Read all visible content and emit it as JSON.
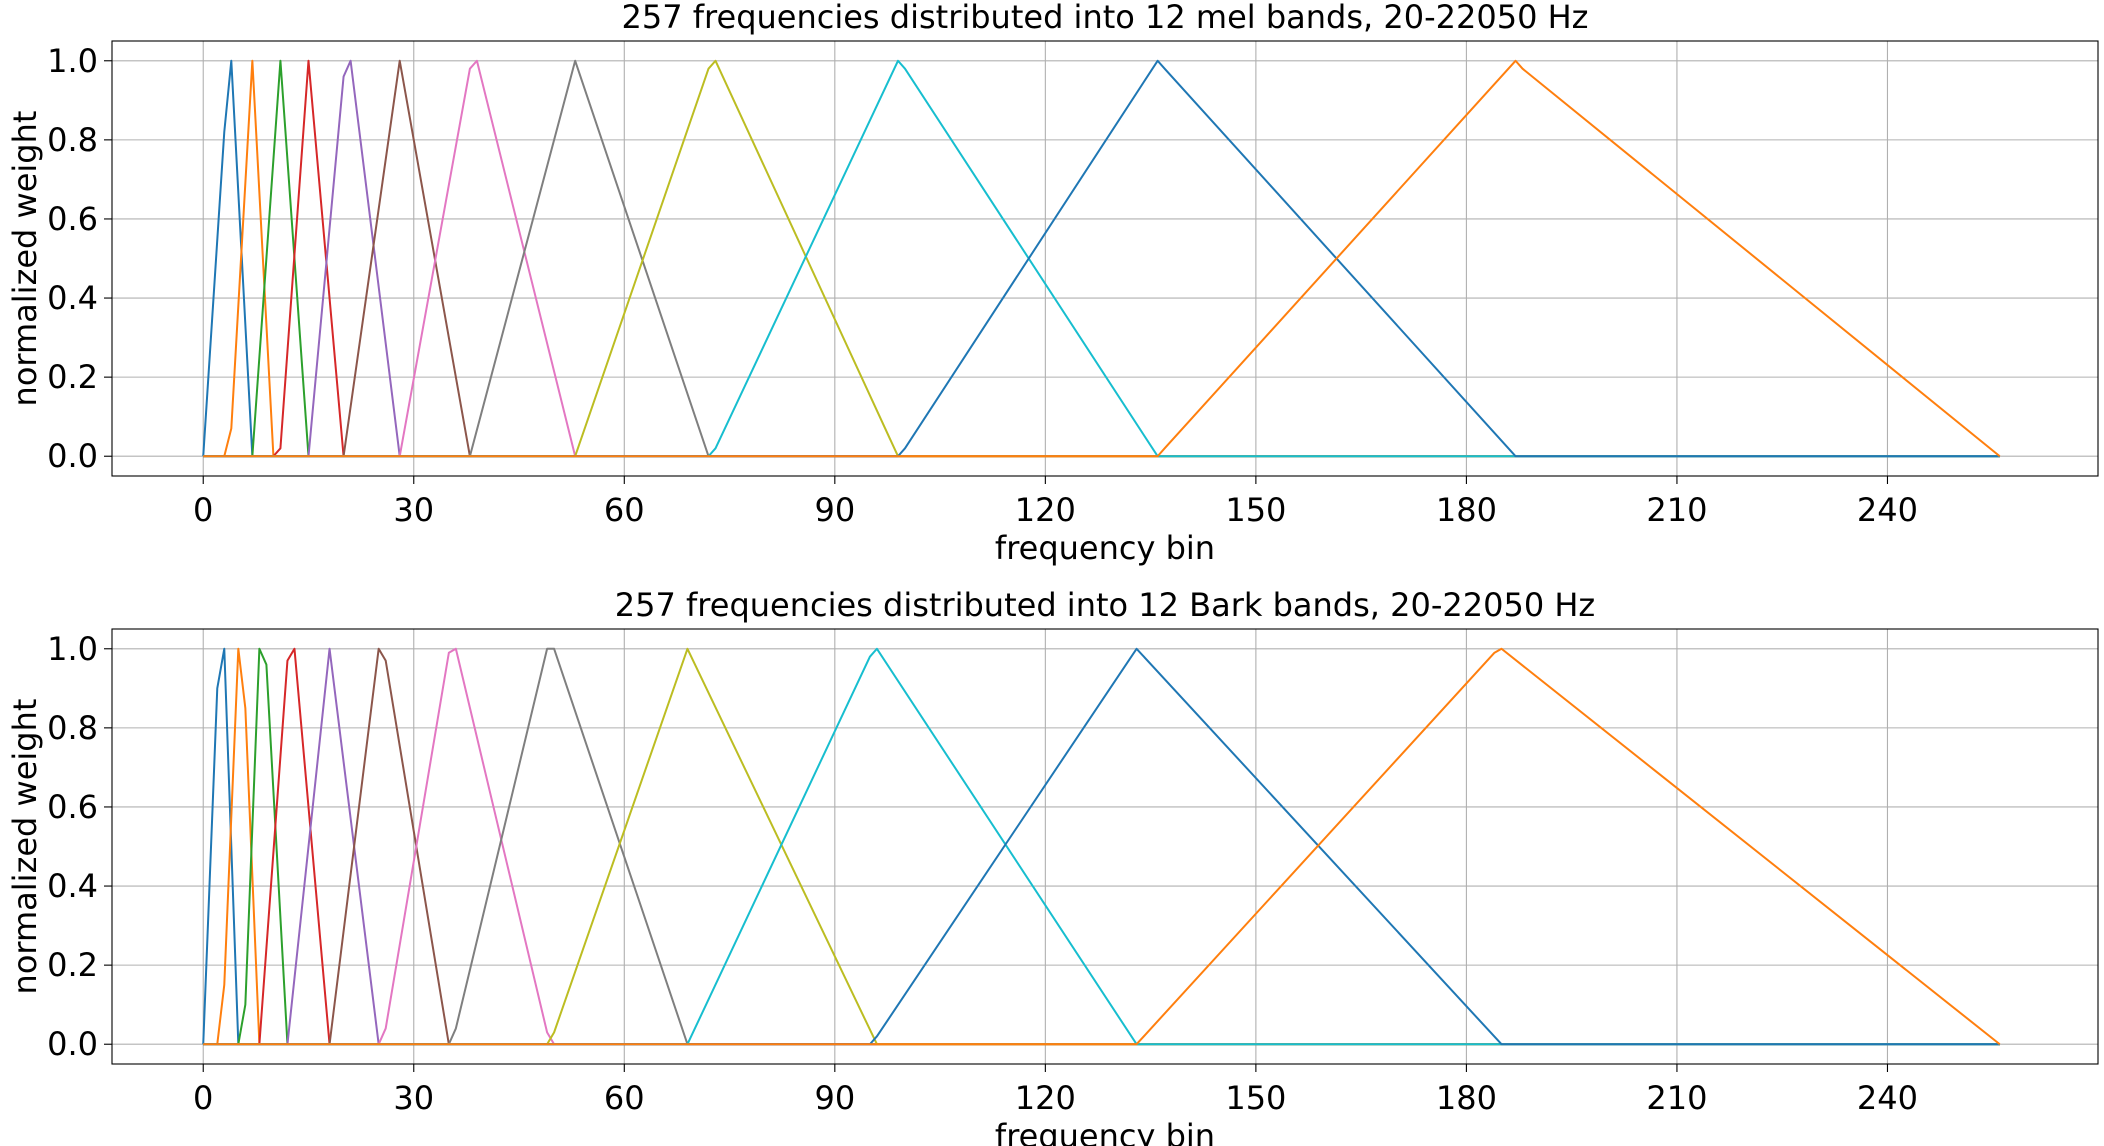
{
  "chart_data": [
    {
      "type": "line",
      "title": "257 frequencies distributed into 12 mel bands, 20-22050 Hz",
      "xlabel": "frequency bin",
      "ylabel": "normalized weight",
      "xlim": [
        -13,
        270
      ],
      "ylim": [
        -0.05,
        1.05
      ],
      "xticks": [
        0,
        30,
        60,
        90,
        120,
        150,
        180,
        210,
        240
      ],
      "xtick_labels": [
        "0",
        "30",
        "60",
        "90",
        "120",
        "150",
        "180",
        "210",
        "240"
      ],
      "yticks": [
        0.0,
        0.2,
        0.4,
        0.6,
        0.8,
        1.0
      ],
      "ytick_labels": [
        "0.0",
        "0.2",
        "0.4",
        "0.6",
        "0.8",
        "1.0"
      ],
      "grid": true,
      "series": [
        {
          "color": "#1f77b4",
          "x": [
            0,
            3,
            4,
            7,
            256
          ],
          "y": [
            0,
            0.82,
            1.0,
            0,
            0
          ]
        },
        {
          "color": "#ff7f0e",
          "x": [
            0,
            3,
            4,
            7,
            10,
            256
          ],
          "y": [
            0,
            0,
            0.07,
            1.0,
            0,
            0
          ]
        },
        {
          "color": "#2ca02c",
          "x": [
            0,
            7,
            11,
            15,
            256
          ],
          "y": [
            0,
            0,
            1.0,
            0,
            0
          ]
        },
        {
          "color": "#d62728",
          "x": [
            0,
            10,
            11,
            15,
            20,
            256
          ],
          "y": [
            0,
            0,
            0.02,
            1.0,
            0,
            0
          ]
        },
        {
          "color": "#9467bd",
          "x": [
            0,
            15,
            20,
            21,
            28,
            256
          ],
          "y": [
            0,
            0,
            0.96,
            1.0,
            0,
            0
          ]
        },
        {
          "color": "#8c564b",
          "x": [
            0,
            20,
            28,
            38,
            256
          ],
          "y": [
            0,
            0,
            1.0,
            0,
            0
          ]
        },
        {
          "color": "#e377c2",
          "x": [
            0,
            28,
            38,
            39,
            53,
            256
          ],
          "y": [
            0,
            0,
            0.98,
            1.0,
            0,
            0
          ]
        },
        {
          "color": "#7f7f7f",
          "x": [
            0,
            38,
            53,
            72,
            256
          ],
          "y": [
            0,
            0,
            1.0,
            0,
            0
          ]
        },
        {
          "color": "#bcbd22",
          "x": [
            0,
            53,
            72,
            73,
            99,
            256
          ],
          "y": [
            0,
            0,
            0.98,
            1.0,
            0,
            0
          ]
        },
        {
          "color": "#17becf",
          "x": [
            0,
            72,
            73,
            99,
            100,
            136,
            256
          ],
          "y": [
            0,
            0,
            0.02,
            1.0,
            0.98,
            0,
            0
          ]
        },
        {
          "color": "#1f77b4",
          "x": [
            0,
            99,
            100,
            136,
            137,
            187,
            256
          ],
          "y": [
            0,
            0,
            0.02,
            1.0,
            0.98,
            0,
            0
          ]
        },
        {
          "color": "#ff7f0e",
          "x": [
            0,
            136,
            137,
            187,
            188,
            256
          ],
          "y": [
            0,
            0,
            0.02,
            1.0,
            0.98,
            0
          ]
        }
      ]
    },
    {
      "type": "line",
      "title": "257 frequencies distributed into 12 Bark bands, 20-22050 Hz",
      "xlabel": "frequency bin",
      "ylabel": "normalized weight",
      "xlim": [
        -13,
        270
      ],
      "ylim": [
        -0.05,
        1.05
      ],
      "xticks": [
        0,
        30,
        60,
        90,
        120,
        150,
        180,
        210,
        240
      ],
      "xtick_labels": [
        "0",
        "30",
        "60",
        "90",
        "120",
        "150",
        "180",
        "210",
        "240"
      ],
      "yticks": [
        0.0,
        0.2,
        0.4,
        0.6,
        0.8,
        1.0
      ],
      "ytick_labels": [
        "0.0",
        "0.2",
        "0.4",
        "0.6",
        "0.8",
        "1.0"
      ],
      "grid": true,
      "series": [
        {
          "color": "#1f77b4",
          "x": [
            0,
            2,
            3,
            5,
            256
          ],
          "y": [
            0,
            0.9,
            1.0,
            0,
            0
          ]
        },
        {
          "color": "#ff7f0e",
          "x": [
            0,
            2,
            3,
            5,
            6,
            8,
            256
          ],
          "y": [
            0,
            0,
            0.15,
            1.0,
            0.85,
            0,
            0
          ]
        },
        {
          "color": "#2ca02c",
          "x": [
            0,
            5,
            6,
            8,
            9,
            12,
            256
          ],
          "y": [
            0,
            0,
            0.1,
            1.0,
            0.96,
            0,
            0
          ]
        },
        {
          "color": "#d62728",
          "x": [
            0,
            8,
            12,
            13,
            18,
            256
          ],
          "y": [
            0,
            0,
            0.97,
            1.0,
            0,
            0
          ]
        },
        {
          "color": "#9467bd",
          "x": [
            0,
            12,
            18,
            25,
            256
          ],
          "y": [
            0,
            0,
            1.0,
            0,
            0
          ]
        },
        {
          "color": "#8c564b",
          "x": [
            0,
            18,
            25,
            26,
            35,
            256
          ],
          "y": [
            0,
            0,
            1.0,
            0.97,
            0,
            0
          ]
        },
        {
          "color": "#e377c2",
          "x": [
            0,
            25,
            26,
            35,
            36,
            49,
            50,
            256
          ],
          "y": [
            0,
            0,
            0.04,
            0.99,
            1.0,
            0.03,
            0,
            0
          ]
        },
        {
          "color": "#7f7f7f",
          "x": [
            0,
            35,
            36,
            49,
            50,
            69,
            256
          ],
          "y": [
            0,
            0,
            0.04,
            1.0,
            1.0,
            0,
            0
          ]
        },
        {
          "color": "#bcbd22",
          "x": [
            0,
            49,
            50,
            69,
            96,
            256
          ],
          "y": [
            0,
            0,
            0.03,
            1.0,
            0,
            0
          ]
        },
        {
          "color": "#17becf",
          "x": [
            0,
            69,
            95,
            96,
            133,
            256
          ],
          "y": [
            0,
            0,
            0.98,
            1.0,
            0,
            0
          ]
        },
        {
          "color": "#1f77b4",
          "x": [
            0,
            95,
            96,
            133,
            185,
            256
          ],
          "y": [
            0,
            0,
            0.02,
            1.0,
            0,
            0
          ]
        },
        {
          "color": "#ff7f0e",
          "x": [
            0,
            133,
            184,
            185,
            256
          ],
          "y": [
            0,
            0,
            0.99,
            1.0,
            0
          ]
        }
      ]
    }
  ]
}
